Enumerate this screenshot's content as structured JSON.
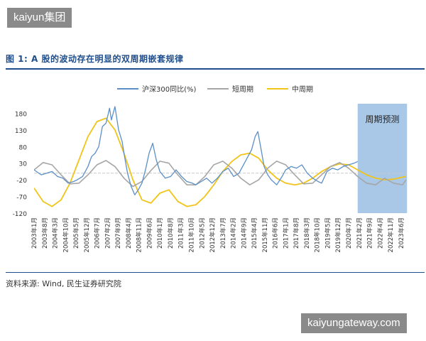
{
  "watermark_top": "kaiyun集团",
  "watermark_bottom": "kaiyungateway.com",
  "figure_title": "图 1: A 股的波动存在明显的双周期嵌套规律",
  "source": "资料来源: Wind, 民生证券研究院",
  "colors": {
    "title": "#1f4e8c",
    "yoy": "#5b8fc7",
    "short_cycle": "#a6a6a6",
    "mid_cycle": "#f0c419",
    "forecast_band": "#a9c8e8",
    "baseline": "#c9c9c9"
  },
  "chart_data": {
    "type": "line",
    "legend_position": "top",
    "ylim": [
      -120,
      200
    ],
    "yticks": [
      180,
      130,
      80,
      30,
      -20,
      -70,
      -120
    ],
    "xlabels": [
      "2003年1月",
      "2003年8月",
      "2004年3月",
      "2004年10月",
      "2005年5月",
      "2005年12月",
      "2006年7月",
      "2007年2月",
      "2007年9月",
      "2008年4月",
      "2008年11月",
      "2009年6月",
      "2010年1月",
      "2010年8月",
      "2011年3月",
      "2011年10月",
      "2012年5月",
      "2012年12月",
      "2013年7月",
      "2014年2月",
      "2014年9月",
      "2015年4月",
      "2015年11月",
      "2016年6月",
      "2017年1月",
      "2017年8月",
      "2018年3月",
      "2018年10月",
      "2019年5月",
      "2019年12月",
      "2020年7月",
      "2021年2月",
      "2021年9月",
      "2022年4月",
      "2022年11月",
      "2023年6月"
    ],
    "forecast_label": "周期预测",
    "forecast_range": [
      "2021年2月",
      "2023年8月"
    ],
    "series": [
      {
        "name": "沪深300同比(%)",
        "x": [
          2003.0,
          2003.4,
          2003.7,
          2004.0,
          2004.3,
          2004.6,
          2004.9,
          2005.2,
          2005.4,
          2005.7,
          2006.0,
          2006.2,
          2006.4,
          2006.6,
          2006.8,
          2007.0,
          2007.2,
          2007.3,
          2007.5,
          2007.7,
          2007.9,
          2008.0,
          2008.2,
          2008.4,
          2008.6,
          2008.8,
          2009.0,
          2009.2,
          2009.4,
          2009.6,
          2009.8,
          2010.0,
          2010.3,
          2010.6,
          2010.9,
          2011.2,
          2011.5,
          2011.8,
          2012.0,
          2012.3,
          2012.6,
          2012.9,
          2013.2,
          2013.5,
          2013.8,
          2014.1,
          2014.4,
          2014.7,
          2014.9,
          2015.1,
          2015.3,
          2015.45,
          2015.6,
          2015.8,
          2016.0,
          2016.2,
          2016.5,
          2016.8,
          2017.0,
          2017.3,
          2017.6,
          2017.9,
          2018.2,
          2018.5,
          2018.8,
          2019.0,
          2019.3,
          2019.6,
          2019.9,
          2020.2,
          2020.5,
          2020.8,
          2021.0
        ],
        "values": [
          10,
          -5,
          0,
          5,
          -10,
          -15,
          -30,
          -25,
          -20,
          -10,
          20,
          50,
          60,
          80,
          140,
          150,
          195,
          160,
          200,
          130,
          95,
          60,
          0,
          -40,
          -65,
          -50,
          -30,
          10,
          60,
          90,
          40,
          5,
          -15,
          -10,
          10,
          -10,
          -25,
          -30,
          -35,
          -25,
          -15,
          -30,
          -15,
          5,
          15,
          -10,
          0,
          30,
          50,
          70,
          110,
          125,
          80,
          20,
          -5,
          -20,
          -35,
          -10,
          10,
          20,
          15,
          25,
          0,
          -15,
          -25,
          -30,
          5,
          15,
          10,
          20,
          25,
          30,
          35
        ]
      },
      {
        "name": "短周期",
        "x": [
          2003.0,
          2003.5,
          2004.0,
          2004.5,
          2005.0,
          2005.5,
          2006.0,
          2006.5,
          2007.0,
          2007.5,
          2008.0,
          2008.5,
          2009.0,
          2009.5,
          2010.0,
          2010.5,
          2011.0,
          2011.5,
          2012.0,
          2012.5,
          2013.0,
          2013.5,
          2014.0,
          2014.5,
          2015.0,
          2015.5,
          2016.0,
          2016.5,
          2017.0,
          2017.5,
          2018.0,
          2018.5,
          2019.0,
          2019.5,
          2020.0,
          2020.5,
          2021.0,
          2021.5,
          2022.0,
          2022.5,
          2023.0,
          2023.5,
          2023.7
        ],
        "values": [
          10,
          32,
          25,
          -5,
          -32,
          -30,
          -5,
          25,
          38,
          20,
          -15,
          -40,
          -25,
          8,
          36,
          30,
          -5,
          -35,
          -35,
          -10,
          25,
          36,
          15,
          -15,
          -35,
          -20,
          15,
          36,
          25,
          -5,
          -32,
          -30,
          -5,
          20,
          32,
          15,
          -10,
          -30,
          -35,
          -15,
          -30,
          -35,
          -20
        ]
      },
      {
        "name": "中周期",
        "x": [
          2003.0,
          2003.5,
          2004.0,
          2004.5,
          2005.0,
          2005.5,
          2006.0,
          2006.5,
          2007.0,
          2007.5,
          2008.0,
          2008.5,
          2009.0,
          2009.5,
          2010.0,
          2010.5,
          2011.0,
          2011.5,
          2012.0,
          2012.5,
          2013.0,
          2013.5,
          2014.0,
          2014.5,
          2015.0,
          2015.5,
          2016.0,
          2016.5,
          2017.0,
          2017.5,
          2018.0,
          2018.5,
          2019.0,
          2019.5,
          2020.0,
          2020.5,
          2021.0,
          2021.5,
          2022.0,
          2022.5,
          2023.0,
          2023.5,
          2023.7
        ],
        "values": [
          -45,
          -85,
          -100,
          -80,
          -30,
          40,
          110,
          155,
          165,
          130,
          60,
          -20,
          -80,
          -90,
          -60,
          -50,
          -85,
          -100,
          -95,
          -70,
          -35,
          5,
          35,
          55,
          60,
          45,
          10,
          -15,
          -30,
          -35,
          -30,
          -15,
          5,
          20,
          28,
          25,
          10,
          -5,
          -15,
          -20,
          -18,
          -12,
          -10
        ]
      }
    ]
  }
}
